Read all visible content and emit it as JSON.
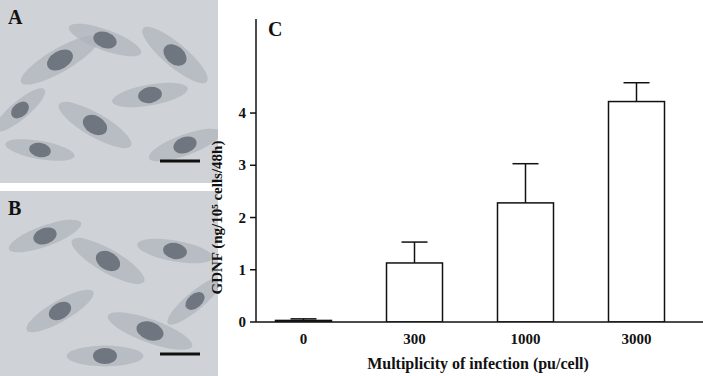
{
  "panel_labels": [
    "A",
    "B",
    "C"
  ],
  "chart_data": {
    "type": "bar",
    "x_label": "Multiplicity of infection (pu/cell)",
    "y_label": "GDNF (ng/10⁵ cells/48h)",
    "categories": [
      "0",
      "300",
      "1000",
      "3000"
    ],
    "values": [
      0.03,
      1.13,
      2.28,
      4.22
    ],
    "errors": [
      0.03,
      0.4,
      0.75,
      0.36
    ],
    "color": "#ffffff",
    "ylim": [
      0,
      5.8
    ],
    "yticks": [
      0,
      1,
      2,
      3,
      4
    ],
    "grid": false
  }
}
